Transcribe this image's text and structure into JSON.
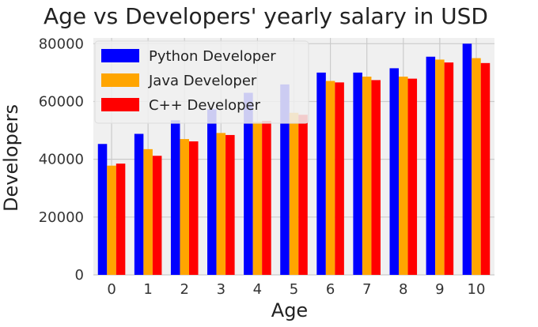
{
  "chart_data": {
    "type": "bar",
    "title": "Age vs Developers' yearly salary in USD",
    "xlabel": "Age",
    "ylabel": "Developers",
    "categories": [
      "0",
      "1",
      "2",
      "3",
      "4",
      "5",
      "6",
      "7",
      "8",
      "9",
      "10"
    ],
    "series": [
      {
        "name": "Python Developer",
        "color": "#0000ff",
        "values": [
          45300,
          48800,
          53500,
          57300,
          63000,
          65900,
          70000,
          70000,
          71500,
          75500,
          80000
        ]
      },
      {
        "name": "Java Developer",
        "color": "#ffa500",
        "values": [
          37800,
          43500,
          47000,
          49100,
          53000,
          56100,
          67100,
          68600,
          68600,
          74500,
          75000
        ]
      },
      {
        "name": "C++ Developer",
        "color": "#ff0000",
        "values": [
          38500,
          41200,
          46200,
          48400,
          53300,
          55400,
          66600,
          67400,
          67900,
          73500,
          73300
        ]
      }
    ],
    "ylim": [
      0,
      82000
    ],
    "yticks": [
      0,
      20000,
      40000,
      60000,
      80000
    ],
    "grid": true,
    "legend_position": "top-left",
    "style": "fivethirtyeight",
    "background_color": "#f0f0f0",
    "grid_color": "#cbcbcb"
  }
}
